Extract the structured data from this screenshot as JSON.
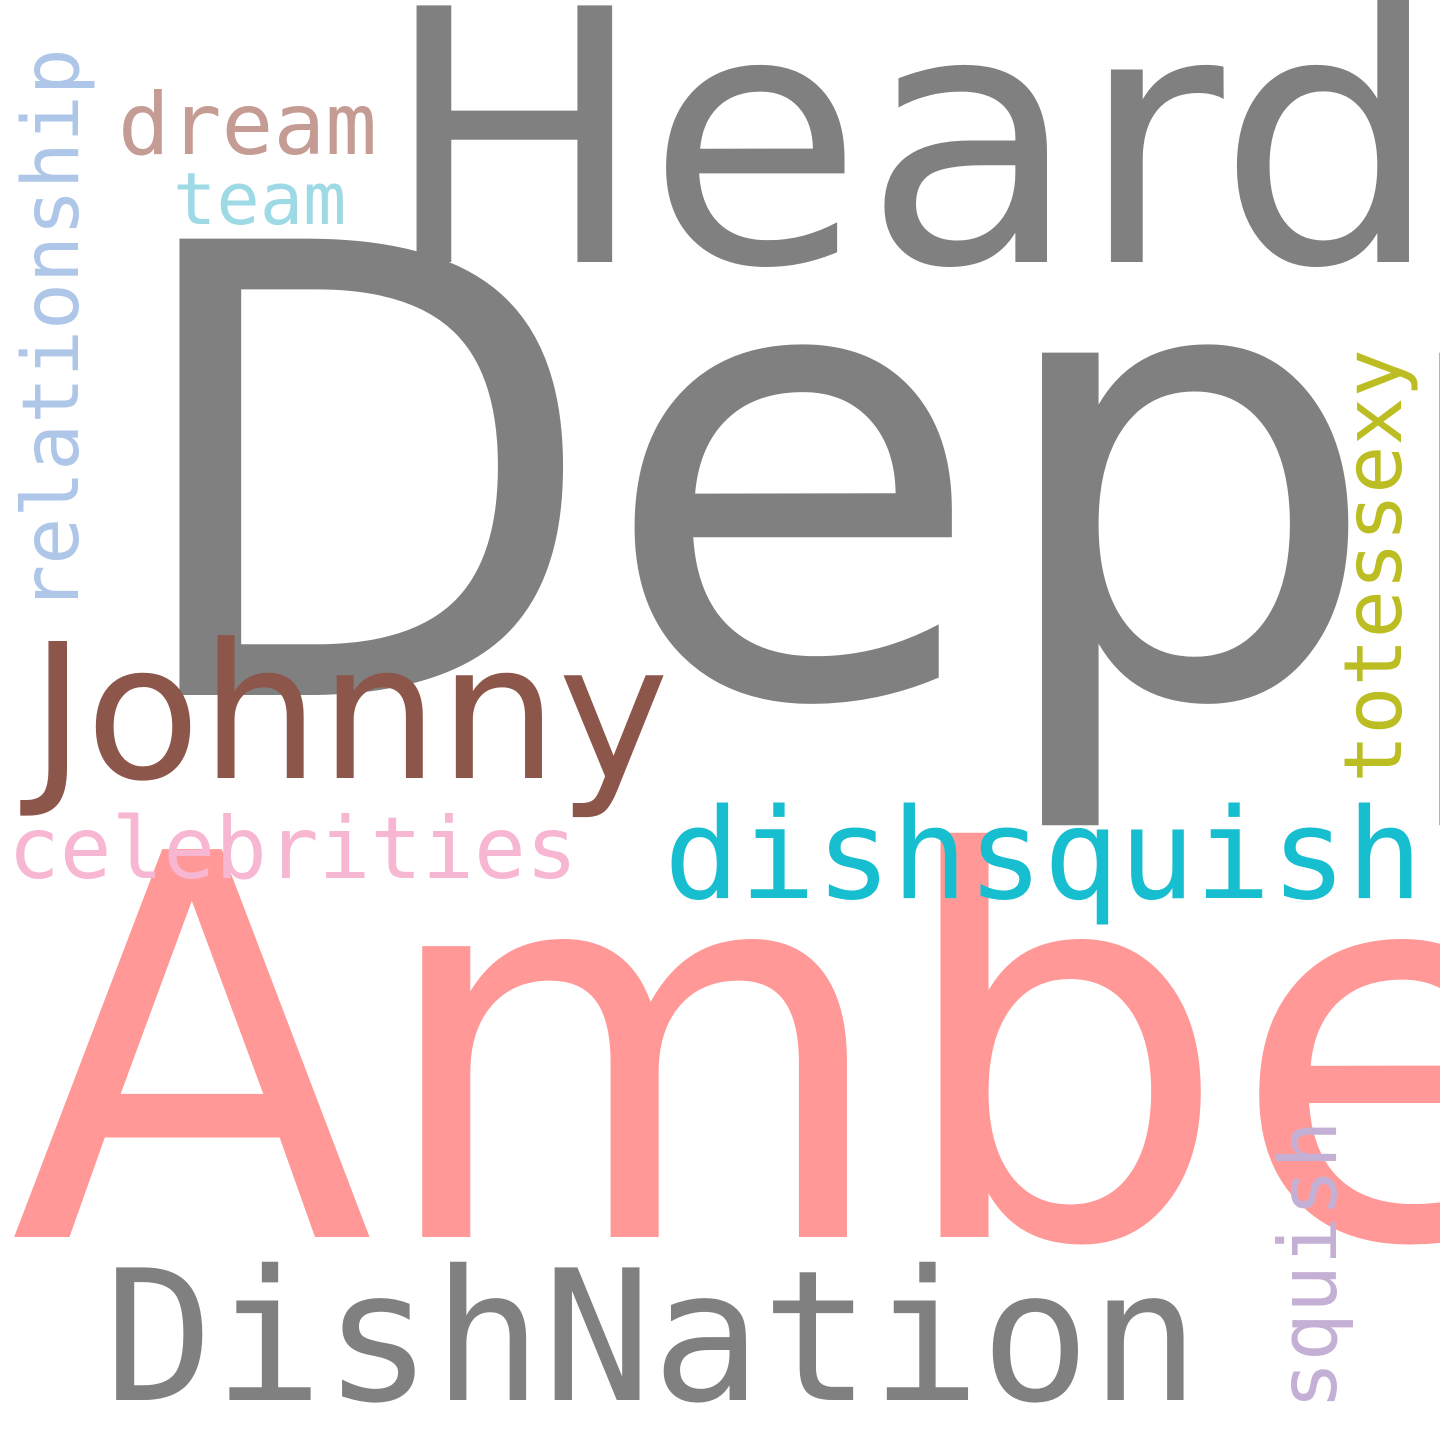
{
  "words": {
    "heard": {
      "text": "Heard",
      "color": "#808080"
    },
    "depp": {
      "text": "Depp",
      "color": "#808080"
    },
    "amber": {
      "text": "Amber",
      "color": "#ff9896"
    },
    "dishnation": {
      "text": "DishNation",
      "color": "#808080"
    },
    "johnny": {
      "text": "Johnny",
      "color": "#8c564b"
    },
    "dishsquish": {
      "text": "dishsquish",
      "color": "#17becf"
    },
    "celebrities": {
      "text": "celebrities",
      "color": "#f7b6d2"
    },
    "dream": {
      "text": "dream",
      "color": "#c49c94"
    },
    "team": {
      "text": "team",
      "color": "#9edae5"
    },
    "relationship": {
      "text": "relationship",
      "color": "#aec7e8"
    },
    "totessexy": {
      "text": "totessexy",
      "color": "#bcbd22"
    },
    "squish": {
      "text": "squish",
      "color": "#c5b0d5"
    }
  }
}
